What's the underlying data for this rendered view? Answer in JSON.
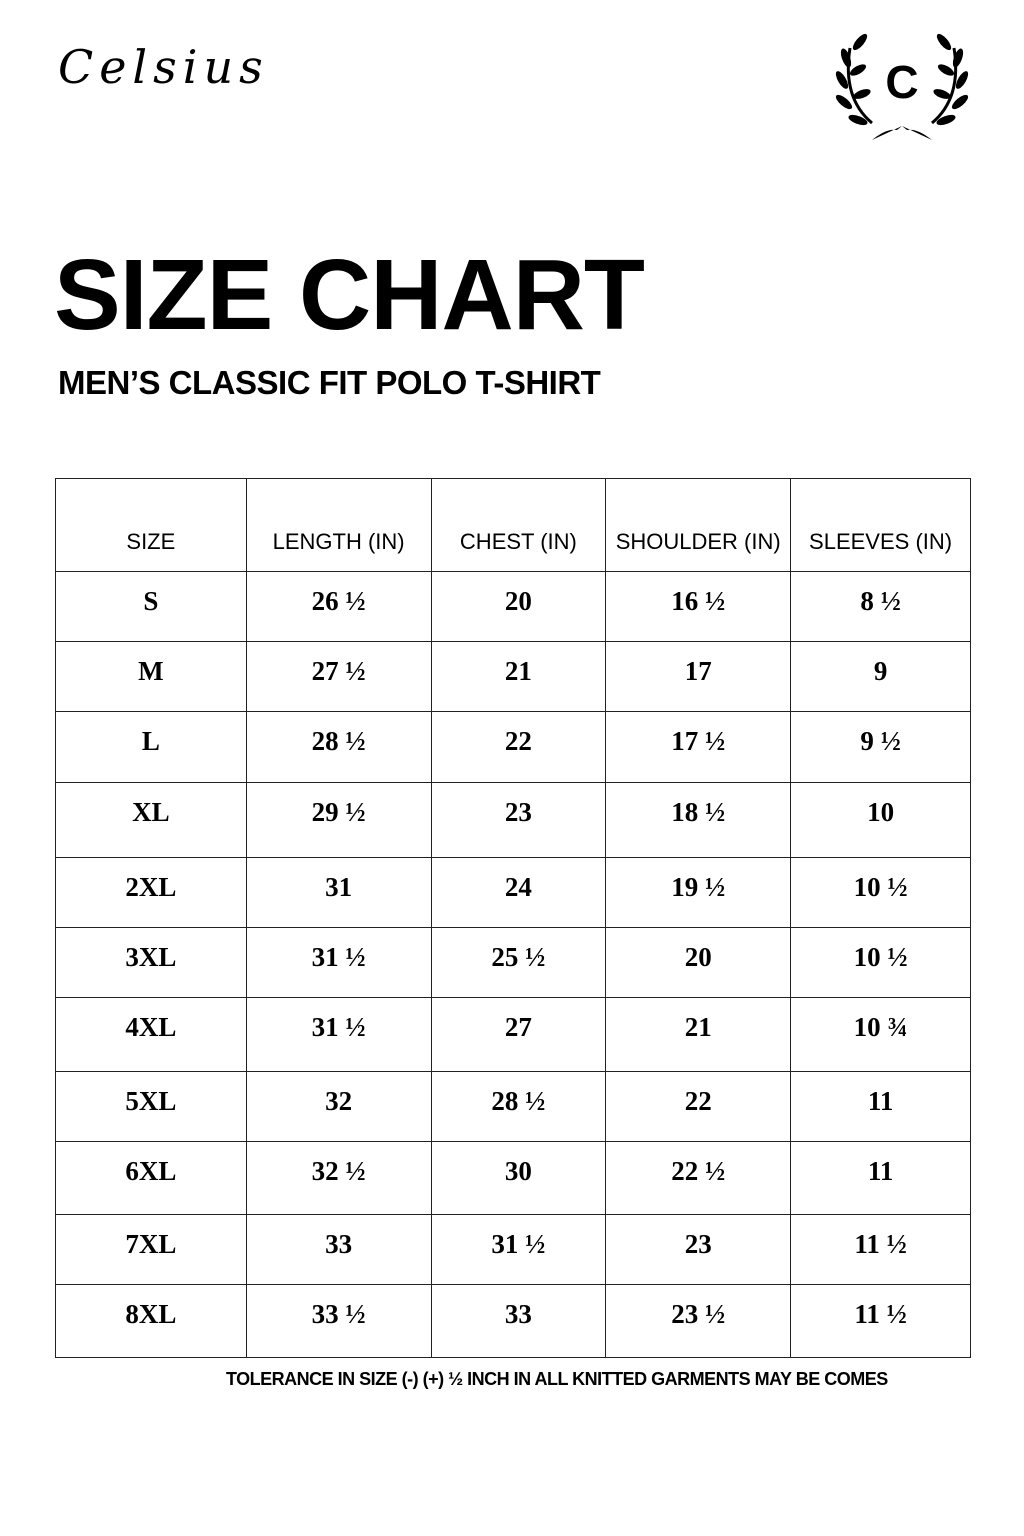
{
  "brand": {
    "name": "Celsius",
    "logo_letter": "C"
  },
  "header": {
    "title": "SIZE CHART",
    "subtitle": "MEN’S CLASSIC FIT POLO T-SHIRT"
  },
  "table": {
    "columns": [
      "SIZE",
      "LENGTH (IN)",
      "CHEST (IN)",
      "SHOULDER (IN)",
      "SLEEVES (IN)"
    ],
    "rows": [
      [
        "S",
        "26 ½",
        "20",
        "16 ½",
        "8 ½"
      ],
      [
        "M",
        "27 ½",
        "21",
        "17",
        "9"
      ],
      [
        "L",
        "28 ½",
        "22",
        "17 ½",
        "9 ½"
      ],
      [
        "XL",
        "29 ½",
        "23",
        "18 ½",
        "10"
      ],
      [
        "2XL",
        "31",
        "24",
        "19 ½",
        "10 ½"
      ],
      [
        "3XL",
        "31 ½",
        "25 ½",
        "20",
        "10 ½"
      ],
      [
        "4XL",
        "31 ½",
        "27",
        "21",
        "10 ¾"
      ],
      [
        "5XL",
        "32",
        "28 ½",
        "22",
        "11"
      ],
      [
        "6XL",
        "32 ½",
        "30",
        "22 ½",
        "11"
      ],
      [
        "7XL",
        "33",
        "31 ½",
        "23",
        "11 ½"
      ],
      [
        "8XL",
        "33 ½",
        "33",
        "23 ½",
        "11 ½"
      ]
    ]
  },
  "footer": {
    "note": "TOLERANCE IN SIZE (-) (+)  ½ INCH IN ALL KNITTED GARMENTS MAY BE COMES"
  }
}
